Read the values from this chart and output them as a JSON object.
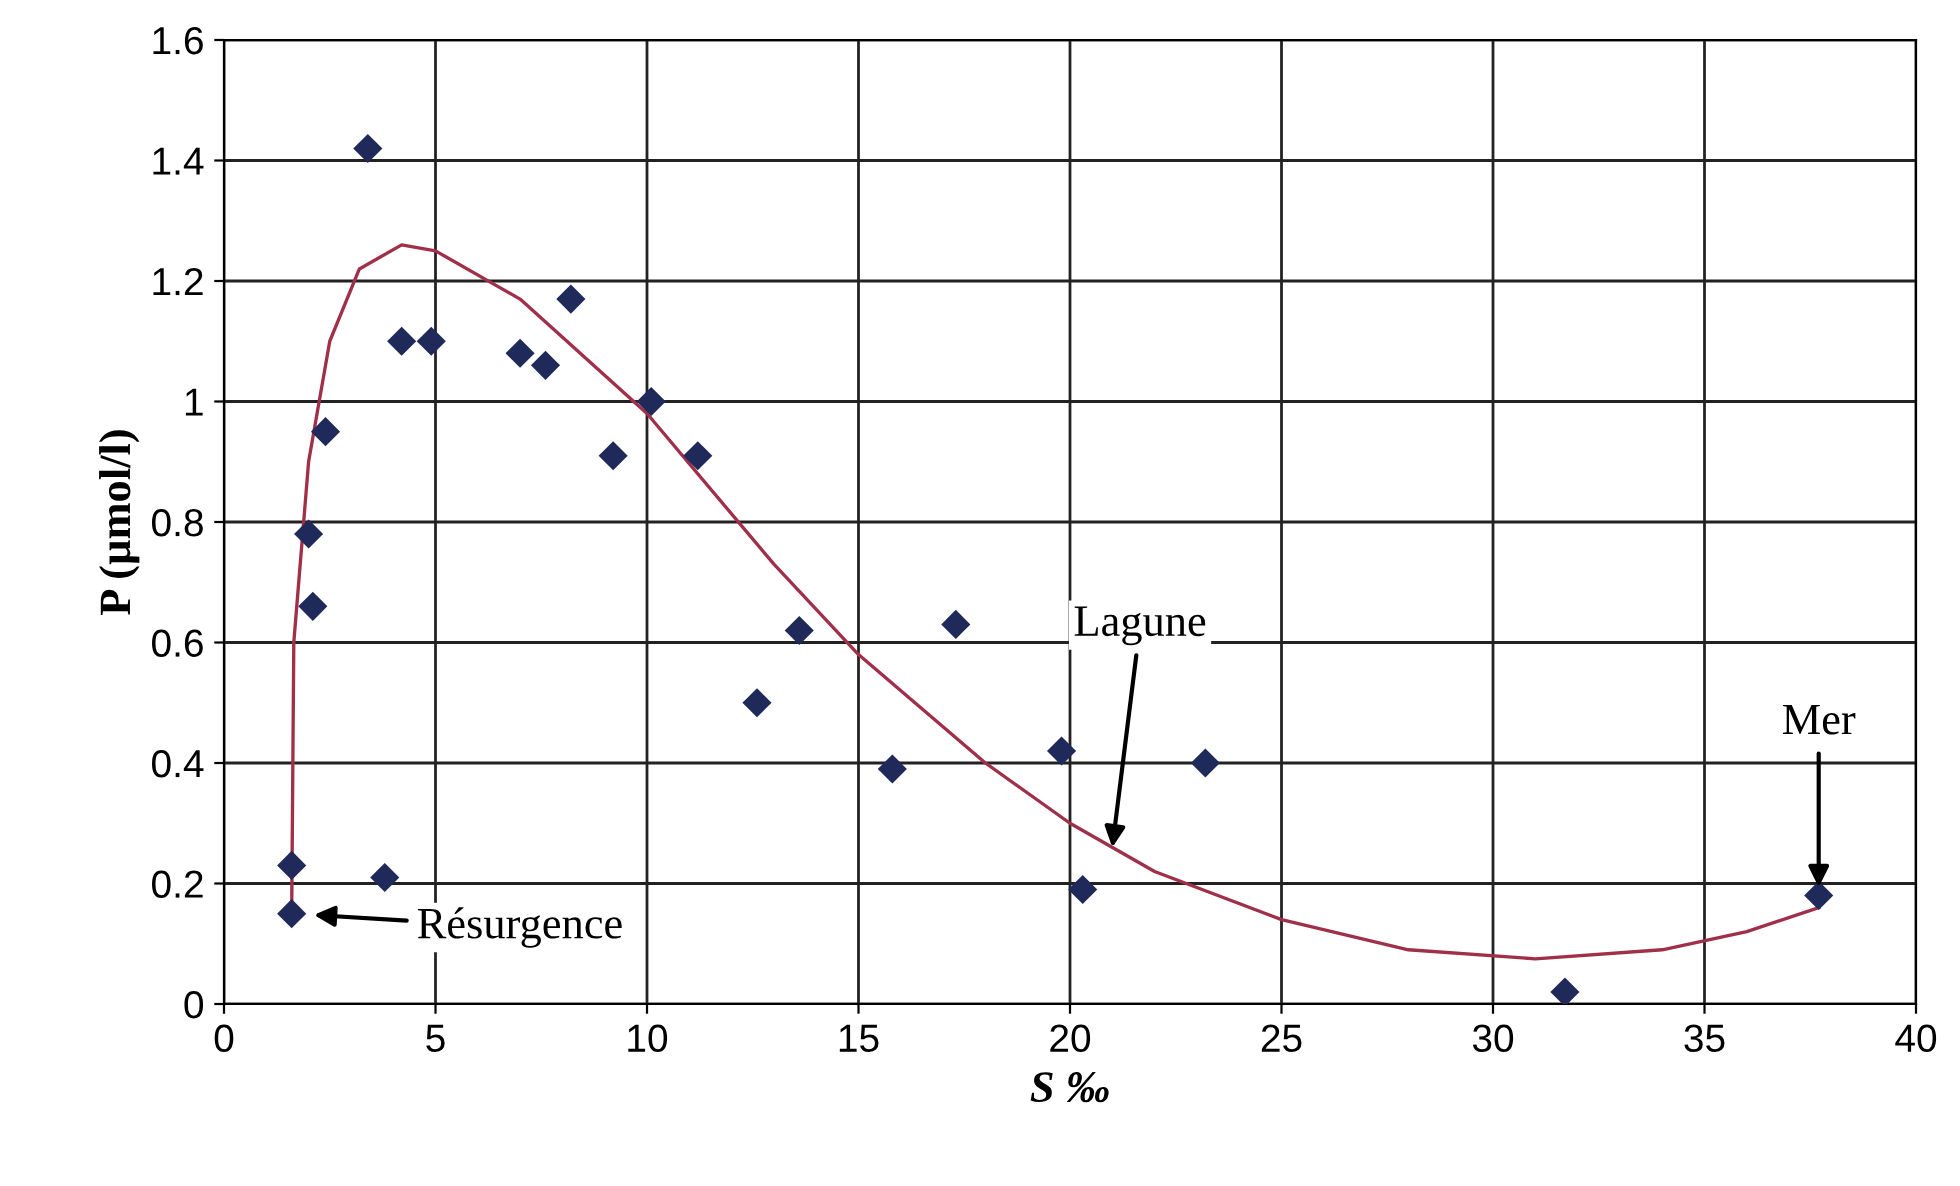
{
  "chart_data": {
    "type": "scatter",
    "xlabel": "S ‰",
    "ylabel": "P (µmol/l)",
    "xlim": [
      0,
      40
    ],
    "xticks": [
      0,
      5,
      10,
      15,
      20,
      25,
      30,
      35,
      40
    ],
    "ylim": [
      0,
      1.6
    ],
    "yticks": [
      0,
      0.2,
      0.4,
      0.6,
      0.8,
      1,
      1.2,
      1.4,
      1.6
    ],
    "grid": true,
    "series": [
      {
        "marker": "diamond",
        "color": "#1f2a5a",
        "x": [
          1.6,
          1.6,
          2.0,
          2.1,
          2.4,
          3.4,
          3.8,
          4.2,
          4.9,
          7.0,
          7.6,
          8.2,
          9.2,
          10.1,
          11.2,
          12.6,
          13.6,
          15.8,
          17.3,
          19.8,
          20.3,
          23.2,
          31.7,
          37.7
        ],
        "values": [
          0.23,
          0.15,
          0.78,
          0.66,
          0.95,
          1.42,
          0.21,
          1.1,
          1.1,
          1.08,
          1.06,
          1.17,
          0.91,
          1.0,
          0.91,
          0.5,
          0.62,
          0.39,
          0.63,
          0.42,
          0.19,
          0.4,
          0.02,
          0.18
        ]
      },
      {
        "type": "line",
        "marker": "none",
        "line_style": "solid",
        "color": "#a0304a",
        "x": [
          1.6,
          1.65,
          2.0,
          2.5,
          3.2,
          4.2,
          5,
          7,
          10,
          13,
          15,
          18,
          20,
          22,
          25,
          28,
          31,
          34,
          36,
          37.7
        ],
        "values": [
          0.15,
          0.6,
          0.9,
          1.1,
          1.22,
          1.26,
          1.25,
          1.17,
          0.98,
          0.73,
          0.58,
          0.4,
          0.3,
          0.22,
          0.14,
          0.09,
          0.075,
          0.09,
          0.12,
          0.16
        ]
      }
    ],
    "annotations": [
      {
        "text": "Résurgence",
        "x": 1.6,
        "y": 0.15
      },
      {
        "text": "Lagune",
        "x": 21,
        "y": 0.26
      },
      {
        "text": "Mer",
        "x": 37.7,
        "y": 0.18
      }
    ]
  }
}
